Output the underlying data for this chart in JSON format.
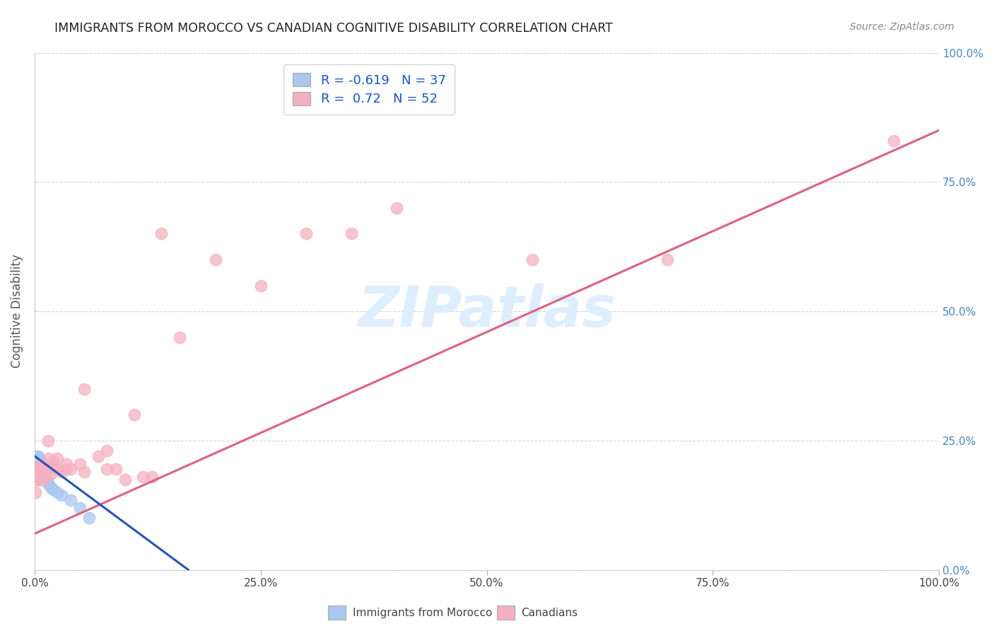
{
  "title": "IMMIGRANTS FROM MOROCCO VS CANADIAN COGNITIVE DISABILITY CORRELATION CHART",
  "source": "Source: ZipAtlas.com",
  "ylabel": "Cognitive Disability",
  "blue_R": -0.619,
  "blue_N": 37,
  "pink_R": 0.72,
  "pink_N": 52,
  "blue_label": "Immigrants from Morocco",
  "pink_label": "Canadians",
  "background_color": "#ffffff",
  "grid_color": "#cccccc",
  "blue_color": "#a8c8f0",
  "blue_line_color": "#2255bb",
  "pink_color": "#f5b0c0",
  "pink_line_color": "#e06080",
  "watermark_color": "#ddeeff",
  "blue_x": [
    0.001,
    0.002,
    0.002,
    0.003,
    0.003,
    0.003,
    0.004,
    0.004,
    0.004,
    0.005,
    0.005,
    0.005,
    0.006,
    0.006,
    0.006,
    0.007,
    0.007,
    0.007,
    0.008,
    0.008,
    0.008,
    0.009,
    0.009,
    0.01,
    0.01,
    0.011,
    0.012,
    0.013,
    0.014,
    0.016,
    0.018,
    0.02,
    0.025,
    0.03,
    0.04,
    0.05,
    0.06
  ],
  "blue_y": [
    0.21,
    0.215,
    0.22,
    0.19,
    0.2,
    0.215,
    0.195,
    0.205,
    0.22,
    0.185,
    0.2,
    0.215,
    0.19,
    0.2,
    0.21,
    0.18,
    0.195,
    0.21,
    0.175,
    0.19,
    0.205,
    0.185,
    0.2,
    0.175,
    0.195,
    0.185,
    0.175,
    0.175,
    0.17,
    0.165,
    0.16,
    0.155,
    0.15,
    0.145,
    0.135,
    0.12,
    0.1
  ],
  "pink_x": [
    0.001,
    0.002,
    0.003,
    0.003,
    0.004,
    0.004,
    0.005,
    0.005,
    0.006,
    0.006,
    0.007,
    0.007,
    0.008,
    0.008,
    0.009,
    0.01,
    0.01,
    0.011,
    0.012,
    0.013,
    0.015,
    0.016,
    0.018,
    0.02,
    0.022,
    0.025,
    0.025,
    0.03,
    0.035,
    0.035,
    0.04,
    0.05,
    0.055,
    0.055,
    0.07,
    0.08,
    0.08,
    0.09,
    0.1,
    0.11,
    0.12,
    0.13,
    0.14,
    0.16,
    0.2,
    0.25,
    0.3,
    0.35,
    0.4,
    0.55,
    0.7,
    0.95
  ],
  "pink_y": [
    0.15,
    0.175,
    0.18,
    0.19,
    0.185,
    0.2,
    0.175,
    0.195,
    0.185,
    0.2,
    0.18,
    0.195,
    0.175,
    0.195,
    0.185,
    0.175,
    0.195,
    0.185,
    0.19,
    0.2,
    0.25,
    0.215,
    0.185,
    0.21,
    0.195,
    0.195,
    0.215,
    0.19,
    0.195,
    0.205,
    0.195,
    0.205,
    0.19,
    0.35,
    0.22,
    0.195,
    0.23,
    0.195,
    0.175,
    0.3,
    0.18,
    0.18,
    0.65,
    0.45,
    0.6,
    0.55,
    0.65,
    0.65,
    0.7,
    0.6,
    0.6,
    0.83
  ],
  "xlim": [
    0,
    1.0
  ],
  "ylim": [
    0,
    1.0
  ],
  "xticks": [
    0.0,
    0.25,
    0.5,
    0.75,
    1.0
  ],
  "xtick_labels": [
    "0.0%",
    "25.0%",
    "50.0%",
    "75.0%",
    "100.0%"
  ],
  "yticks_right": [
    0.0,
    0.25,
    0.5,
    0.75,
    1.0
  ],
  "ytick_labels_right": [
    "0.0%",
    "25.0%",
    "50.0%",
    "75.0%",
    "100.0%"
  ],
  "pink_line_x0": 0.0,
  "pink_line_y0": 0.07,
  "pink_line_x1": 1.0,
  "pink_line_y1": 0.85,
  "blue_line_x0": 0.0,
  "blue_line_y0": 0.22,
  "blue_line_x1": 0.17,
  "blue_line_y1": 0.0
}
